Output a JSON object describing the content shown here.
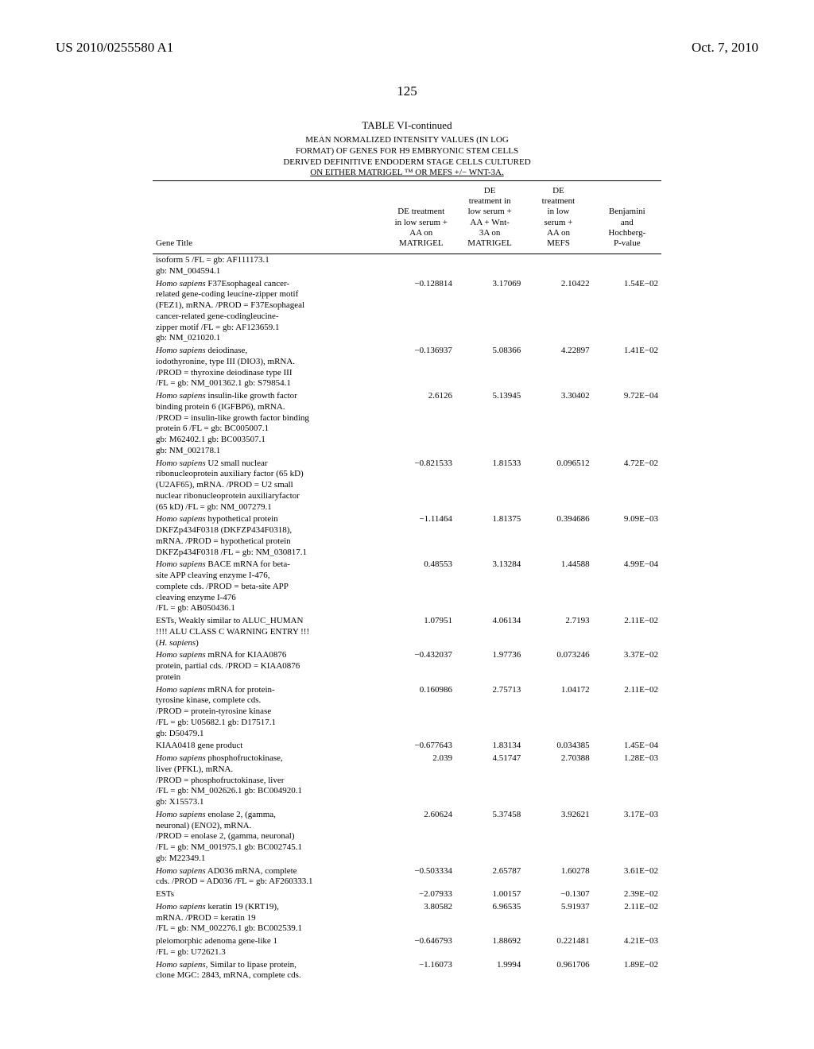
{
  "header": {
    "patent_number": "US 2010/0255580 A1",
    "date": "Oct. 7, 2010"
  },
  "page_number": "125",
  "table": {
    "type": "table",
    "title": "TABLE VI-continued",
    "subtitle": {
      "line1": "MEAN NORMALIZED INTENSITY VALUES (IN LOG",
      "line2": "FORMAT) OF GENES FOR H9 EMBRYONIC STEM CELLS",
      "line3": "DERIVED DEFINITIVE ENDODERM STAGE CELLS CULTURED",
      "line4": "ON EITHER MATRIGEL ™ OR MEFS +/− WNT-3A."
    },
    "columns": [
      {
        "id": "gene",
        "header": "Gene Title"
      },
      {
        "id": "c1",
        "header_lines": [
          "DE treatment",
          "in low serum +",
          "AA on",
          "MATRIGEL"
        ]
      },
      {
        "id": "c2",
        "header_lines": [
          "DE",
          "treatment in",
          "low serum +",
          "AA + Wnt-",
          "3A on",
          "MATRIGEL"
        ]
      },
      {
        "id": "c3",
        "header_lines": [
          "DE",
          "treatment",
          "in low",
          "serum +",
          "AA on",
          "MEFS"
        ]
      },
      {
        "id": "c4",
        "header_lines": [
          "Benjamini",
          "and",
          "Hochberg-",
          "P-value"
        ]
      }
    ],
    "rows": [
      {
        "gene_html": "isoform 5 /FL = gb: AF111173.1<br>gb: NM_004594.1",
        "c1": "",
        "c2": "",
        "c3": "",
        "c4": ""
      },
      {
        "gene_html": "<span class=\"italic\">Homo sapiens</span> F37Esophageal cancer-<br>related gene-coding leucine-zipper motif<br>(FEZ1), mRNA. /PROD = F37Esophageal<br>cancer-related gene-codingleucine-<br>zipper motif /FL = gb: AF123659.1<br>gb: NM_021020.1",
        "c1": "−0.128814",
        "c2": "3.17069",
        "c3": "2.10422",
        "c4": "1.54E−02"
      },
      {
        "gene_html": "<span class=\"italic\">Homo sapiens</span> deiodinase,<br>iodothyronine, type III (DIO3), mRNA.<br>/PROD = thyroxine deiodinase type III<br>/FL = gb: NM_001362.1 gb: S79854.1",
        "c1": "−0.136937",
        "c2": "5.08366",
        "c3": "4.22897",
        "c4": "1.41E−02"
      },
      {
        "gene_html": "<span class=\"italic\">Homo sapiens</span> insulin-like growth factor<br>binding protein 6 (IGFBP6), mRNA.<br>/PROD = insulin-like growth factor binding<br>protein 6 /FL = gb: BC005007.1<br>gb: M62402.1 gb: BC003507.1<br>gb: NM_002178.1",
        "c1": "2.6126",
        "c2": "5.13945",
        "c3": "3.30402",
        "c4": "9.72E−04"
      },
      {
        "gene_html": "<span class=\"italic\">Homo sapiens</span> U2 small nuclear<br>ribonucleoprotein auxiliary factor (65 kD)<br>(U2AF65), mRNA. /PROD = U2 small<br>nuclear ribonucleoprotein auxiliaryfactor<br>(65 kD) /FL = gb: NM_007279.1",
        "c1": "−0.821533",
        "c2": "1.81533",
        "c3": "0.096512",
        "c4": "4.72E−02"
      },
      {
        "gene_html": "<span class=\"italic\">Homo sapiens</span> hypothetical protein<br>DKFZp434F0318 (DKFZP434F0318),<br>mRNA. /PROD = hypothetical protein<br>DKFZp434F0318 /FL = gb: NM_030817.1",
        "c1": "−1.11464",
        "c2": "1.81375",
        "c3": "0.394686",
        "c4": "9.09E−03"
      },
      {
        "gene_html": "<span class=\"italic\">Homo sapiens</span> BACE mRNA for beta-<br>site APP cleaving enzyme I-476,<br>complete cds. /PROD = beta-site APP<br>cleaving enzyme I-476<br>/FL = gb: AB050436.1",
        "c1": "0.48553",
        "c2": "3.13284",
        "c3": "1.44588",
        "c4": "4.99E−04"
      },
      {
        "gene_html": "ESTs, Weakly similar to ALUC_HUMAN<br>!!!! ALU CLASS C WARNING ENTRY !!!<br>(<span class=\"italic\">H. sapiens</span>)",
        "c1": "1.07951",
        "c2": "4.06134",
        "c3": "2.7193",
        "c4": "2.11E−02"
      },
      {
        "gene_html": "<span class=\"italic\">Homo sapiens</span> mRNA for KIAA0876<br>protein, partial cds. /PROD = KIAA0876<br>protein",
        "c1": "−0.432037",
        "c2": "1.97736",
        "c3": "0.073246",
        "c4": "3.37E−02"
      },
      {
        "gene_html": "<span class=\"italic\">Homo sapiens</span> mRNA for protein-<br>tyrosine kinase, complete cds.<br>/PROD = protein-tyrosine kinase<br>/FL = gb: U05682.1 gb: D17517.1<br>gb: D50479.1",
        "c1": "0.160986",
        "c2": "2.75713",
        "c3": "1.04172",
        "c4": "2.11E−02"
      },
      {
        "gene_html": "KIAA0418 gene product",
        "c1": "−0.677643",
        "c2": "1.83134",
        "c3": "0.034385",
        "c4": "1.45E−04"
      },
      {
        "gene_html": "<span class=\"italic\">Homo sapiens</span> phosphofructokinase,<br>liver (PFKL), mRNA.<br>/PROD = phosphofructokinase, liver<br>/FL = gb: NM_002626.1 gb: BC004920.1<br>gb: X15573.1",
        "c1": "2.039",
        "c2": "4.51747",
        "c3": "2.70388",
        "c4": "1.28E−03"
      },
      {
        "gene_html": "<span class=\"italic\">Homo sapiens</span> enolase 2, (gamma,<br>neuronal) (ENO2), mRNA.<br>/PROD = enolase 2, (gamma, neuronal)<br>/FL = gb: NM_001975.1 gb: BC002745.1<br>gb: M22349.1",
        "c1": "2.60624",
        "c2": "5.37458",
        "c3": "3.92621",
        "c4": "3.17E−03"
      },
      {
        "gene_html": "<span class=\"italic\">Homo sapiens</span> AD036 mRNA, complete<br>cds. /PROD = AD036 /FL = gb: AF260333.1",
        "c1": "−0.503334",
        "c2": "2.65787",
        "c3": "1.60278",
        "c4": "3.61E−02"
      },
      {
        "gene_html": "ESTs",
        "c1": "−2.07933",
        "c2": "1.00157",
        "c3": "−0.1307",
        "c4": "2.39E−02"
      },
      {
        "gene_html": "<span class=\"italic\">Homo sapiens</span> keratin 19 (KRT19),<br>mRNA. /PROD = keratin 19<br>/FL = gb: NM_002276.1 gb: BC002539.1",
        "c1": "3.80582",
        "c2": "6.96535",
        "c3": "5.91937",
        "c4": "2.11E−02"
      },
      {
        "gene_html": "pleiomorphic adenoma gene-like 1<br>/FL = gb: U72621.3",
        "c1": "−0.646793",
        "c2": "1.88692",
        "c3": "0.221481",
        "c4": "4.21E−03"
      },
      {
        "gene_html": "<span class=\"italic\">Homo sapiens</span>, Similar to lipase protein,<br>clone MGC: 2843, mRNA, complete cds.",
        "c1": "−1.16073",
        "c2": "1.9994",
        "c3": "0.961706",
        "c4": "1.89E−02"
      }
    ],
    "background_color": "#ffffff",
    "text_color": "#000000",
    "font_family": "Times New Roman",
    "base_fontsize": 11,
    "header_fontsize": 17
  }
}
